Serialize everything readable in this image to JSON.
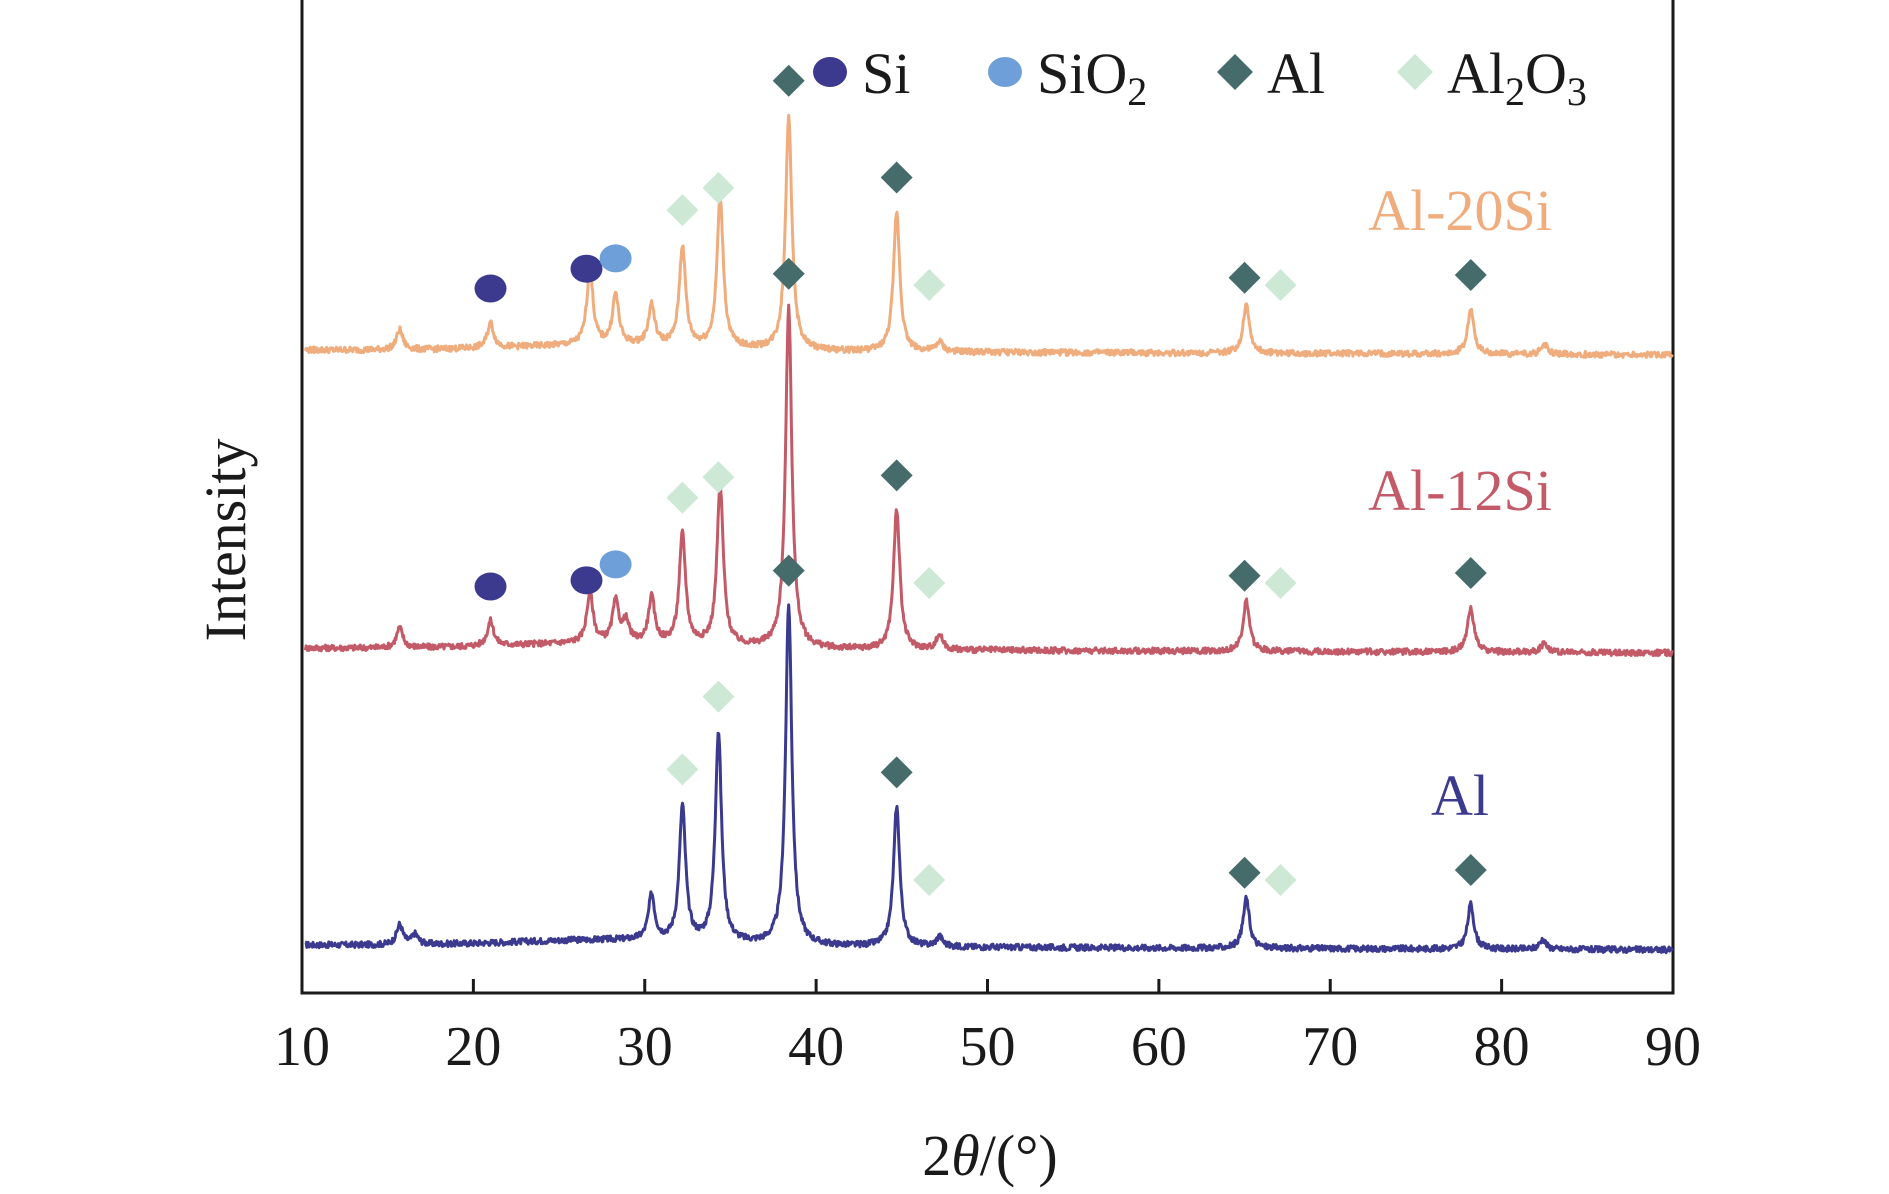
{
  "chart_data": {
    "type": "line",
    "title": "",
    "xlabel": "2θ/(°)",
    "ylabel": "Intensity",
    "xlim": [
      10,
      90
    ],
    "xticks": [
      10,
      20,
      30,
      40,
      50,
      60,
      70,
      80,
      90
    ],
    "grid": false,
    "legend": {
      "placement": "top-right",
      "entries": [
        {
          "label": "Si",
          "marker": "circle",
          "color": "#3b3a8f"
        },
        {
          "label": "SiO",
          "sub": "2",
          "marker": "circle",
          "color": "#6f9fd8"
        },
        {
          "label": "Al",
          "marker": "diamond",
          "color": "#456b6b"
        },
        {
          "label": "Al",
          "sub": "2",
          "label2": "O",
          "sub2": "3",
          "marker": "diamond",
          "color": "#cde9d6"
        }
      ]
    },
    "series": [
      {
        "name": "Al",
        "color": "#3b3a8f",
        "peaks": [
          [
            15.7,
            0.04
          ],
          [
            16.6,
            0.02
          ],
          [
            30.4,
            0.09
          ],
          [
            32.2,
            0.27
          ],
          [
            34.3,
            0.42
          ],
          [
            38.4,
            0.68
          ],
          [
            44.7,
            0.28
          ],
          [
            47.2,
            0.02
          ],
          [
            65.1,
            0.1
          ],
          [
            78.2,
            0.09
          ],
          [
            82.4,
            0.02
          ]
        ],
        "markers": [
          {
            "phase": "Al2O3",
            "x": 32.2
          },
          {
            "phase": "Al2O3",
            "x": 34.3
          },
          {
            "phase": "Al",
            "x": 38.4
          },
          {
            "phase": "Al",
            "x": 44.7
          },
          {
            "phase": "Al2O3",
            "x": 46.6
          },
          {
            "phase": "Al",
            "x": 65.0
          },
          {
            "phase": "Al2O3",
            "x": 67.1
          },
          {
            "phase": "Al",
            "x": 78.2
          }
        ]
      },
      {
        "name": "Al-12Si",
        "color": "#c35a68",
        "peaks": [
          [
            15.7,
            0.04
          ],
          [
            21.0,
            0.05
          ],
          [
            26.8,
            0.1
          ],
          [
            28.3,
            0.08
          ],
          [
            28.9,
            0.04
          ],
          [
            30.4,
            0.09
          ],
          [
            32.2,
            0.22
          ],
          [
            34.4,
            0.32
          ],
          [
            38.4,
            0.68
          ],
          [
            44.7,
            0.28
          ],
          [
            47.2,
            0.03
          ],
          [
            65.1,
            0.1
          ],
          [
            78.2,
            0.09
          ],
          [
            82.5,
            0.02
          ]
        ],
        "markers": [
          {
            "phase": "Si",
            "x": 21.0
          },
          {
            "phase": "Si",
            "x": 26.6
          },
          {
            "phase": "SiO2",
            "x": 28.3
          },
          {
            "phase": "Al2O3",
            "x": 32.2
          },
          {
            "phase": "Al2O3",
            "x": 34.3
          },
          {
            "phase": "Al",
            "x": 38.4
          },
          {
            "phase": "Al",
            "x": 44.7
          },
          {
            "phase": "Al2O3",
            "x": 46.6
          },
          {
            "phase": "Al",
            "x": 65.0
          },
          {
            "phase": "Al2O3",
            "x": 67.1
          },
          {
            "phase": "Al",
            "x": 78.2
          }
        ]
      },
      {
        "name": "Al-20Si",
        "color": "#efac7d",
        "peaks": [
          [
            15.7,
            0.04
          ],
          [
            21.0,
            0.05
          ],
          [
            26.8,
            0.15
          ],
          [
            28.3,
            0.1
          ],
          [
            30.4,
            0.08
          ],
          [
            32.2,
            0.2
          ],
          [
            34.4,
            0.3
          ],
          [
            38.4,
            0.47
          ],
          [
            44.7,
            0.28
          ],
          [
            47.2,
            0.02
          ],
          [
            65.1,
            0.1
          ],
          [
            78.2,
            0.09
          ],
          [
            82.5,
            0.02
          ]
        ],
        "markers": [
          {
            "phase": "Si",
            "x": 21.0
          },
          {
            "phase": "Si",
            "x": 26.6
          },
          {
            "phase": "SiO2",
            "x": 28.3
          },
          {
            "phase": "Al2O3",
            "x": 32.2
          },
          {
            "phase": "Al2O3",
            "x": 34.3
          },
          {
            "phase": "Al",
            "x": 38.4
          },
          {
            "phase": "Al",
            "x": 44.7
          },
          {
            "phase": "Al2O3",
            "x": 46.6
          },
          {
            "phase": "Al",
            "x": 65.0
          },
          {
            "phase": "Al2O3",
            "x": 67.1
          },
          {
            "phase": "Al",
            "x": 78.2
          }
        ]
      }
    ],
    "phase_colors": {
      "Si": "#3b3a8f",
      "SiO2": "#6f9fd8",
      "Al": "#456b6b",
      "Al2O3": "#cde9d6"
    }
  }
}
